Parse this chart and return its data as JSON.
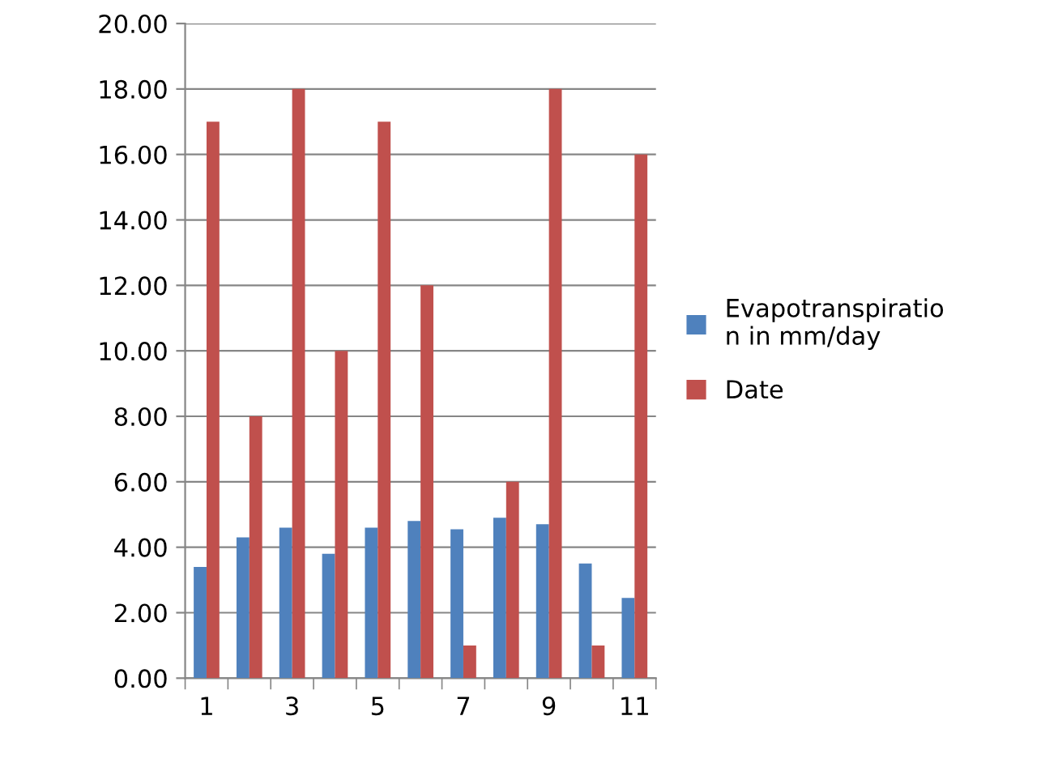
{
  "chart_data": {
    "type": "bar",
    "categories": [
      "1",
      null,
      "3",
      null,
      "5",
      null,
      "7",
      null,
      "9",
      null,
      "11"
    ],
    "series": [
      {
        "name": "Evapotranspiration in mm/day",
        "color": "#4f81bd",
        "values": [
          3.4,
          4.3,
          4.6,
          3.8,
          4.6,
          4.8,
          4.55,
          4.9,
          4.7,
          3.5,
          2.45
        ]
      },
      {
        "name": "Date",
        "color": "#c0504d",
        "values": [
          17,
          8,
          18,
          10,
          17,
          12,
          1,
          6,
          18,
          1,
          16
        ]
      }
    ],
    "ylim": [
      0,
      20
    ],
    "yticks": [
      {
        "value": 0,
        "label": "0.00"
      },
      {
        "value": 2,
        "label": "2.00"
      },
      {
        "value": 4,
        "label": "4.00"
      },
      {
        "value": 6,
        "label": "6.00"
      },
      {
        "value": 8,
        "label": "8.00"
      },
      {
        "value": 10,
        "label": "10.00"
      },
      {
        "value": 12,
        "label": "12.00"
      },
      {
        "value": 14,
        "label": "14.00"
      },
      {
        "value": 16,
        "label": "16.00"
      },
      {
        "value": 18,
        "label": "18.00"
      },
      {
        "value": 20,
        "label": "20.00"
      }
    ],
    "grid": "y",
    "legend": "right"
  }
}
